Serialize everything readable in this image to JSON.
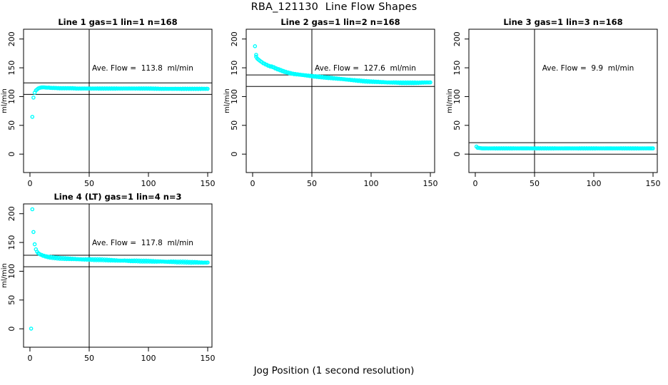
{
  "figure": {
    "title": "RBA_121130  Line Flow Shapes",
    "xlabel": "Jog Position (1 second resolution)",
    "background_color": "#FFFFFF",
    "axis_color": "#000000",
    "point_color": "#00FFFF"
  },
  "chart_data": [
    {
      "type": "scatter",
      "title": "Line 1 gas=1 lin=1 n=168",
      "ave_flow": 113.8,
      "ave_flow_label": "Ave. Flow =  113.8  ml/min",
      "ylabel": "ml/min",
      "x_ticks": [
        0,
        50,
        100,
        150
      ],
      "y_ticks": [
        0,
        50,
        100,
        150,
        200
      ],
      "xlim": [
        -5.4,
        153.6
      ],
      "ylim": [
        -32,
        217
      ],
      "vline_x": 50,
      "hlines": [
        123.8,
        103.8
      ],
      "jitter": 0.35,
      "points": [
        [
          2,
          65
        ],
        [
          3,
          98
        ],
        [
          4,
          107
        ],
        [
          5,
          110.5
        ],
        [
          6,
          112.5
        ],
        [
          7,
          114
        ],
        [
          8,
          115
        ],
        [
          9,
          115.5
        ],
        [
          10,
          116
        ],
        [
          12,
          116
        ],
        [
          14,
          115.5
        ],
        [
          16,
          115.5
        ],
        [
          18,
          115
        ],
        [
          20,
          115
        ],
        [
          25,
          114.5
        ],
        [
          30,
          114.5
        ],
        [
          35,
          114.5
        ],
        [
          40,
          114
        ],
        [
          50,
          114
        ],
        [
          60,
          114
        ],
        [
          70,
          114
        ],
        [
          80,
          114
        ],
        [
          90,
          114
        ],
        [
          100,
          114
        ],
        [
          110,
          113.5
        ],
        [
          120,
          113.5
        ],
        [
          130,
          113.5
        ],
        [
          140,
          113.5
        ],
        [
          150,
          113.5
        ]
      ]
    },
    {
      "type": "scatter",
      "title": "Line 2 gas=1 lin=2 n=168",
      "ave_flow": 127.6,
      "ave_flow_label": "Ave. Flow =  127.6  ml/min",
      "ylabel": "ml/min",
      "x_ticks": [
        0,
        50,
        100,
        150
      ],
      "y_ticks": [
        0,
        50,
        100,
        150,
        200
      ],
      "xlim": [
        -5.4,
        153.6
      ],
      "ylim": [
        -32,
        217
      ],
      "vline_x": 50,
      "hlines": [
        137.6,
        117.6
      ],
      "jitter": 0.7,
      "points": [
        [
          2,
          188
        ],
        [
          3,
          172
        ],
        [
          3,
          169
        ],
        [
          4,
          166
        ],
        [
          5,
          164
        ],
        [
          6,
          162.5
        ],
        [
          7,
          161
        ],
        [
          8,
          159.5
        ],
        [
          9,
          158
        ],
        [
          10,
          157
        ],
        [
          11,
          156
        ],
        [
          12,
          155
        ],
        [
          13,
          154
        ],
        [
          14,
          153
        ],
        [
          15,
          152.5
        ],
        [
          16,
          152
        ],
        [
          17,
          151.5
        ],
        [
          18,
          150.5
        ],
        [
          19,
          149.5
        ],
        [
          20,
          148.5
        ],
        [
          22,
          147
        ],
        [
          24,
          145.5
        ],
        [
          26,
          144
        ],
        [
          28,
          142.5
        ],
        [
          30,
          141.5
        ],
        [
          32,
          140.5
        ],
        [
          34,
          139.5
        ],
        [
          36,
          139
        ],
        [
          38,
          138.5
        ],
        [
          40,
          138
        ],
        [
          42,
          137.5
        ],
        [
          44,
          137
        ],
        [
          46,
          136.5
        ],
        [
          48,
          136
        ],
        [
          50,
          135.5
        ],
        [
          55,
          134.5
        ],
        [
          60,
          133.5
        ],
        [
          65,
          132.5
        ],
        [
          70,
          131.5
        ],
        [
          75,
          130.5
        ],
        [
          80,
          129.5
        ],
        [
          85,
          128.5
        ],
        [
          90,
          127.5
        ],
        [
          95,
          126.5
        ],
        [
          100,
          126
        ],
        [
          105,
          125.5
        ],
        [
          110,
          125
        ],
        [
          115,
          124.5
        ],
        [
          120,
          124.5
        ],
        [
          125,
          124
        ],
        [
          130,
          124
        ],
        [
          135,
          124
        ],
        [
          140,
          124
        ],
        [
          145,
          124.5
        ],
        [
          150,
          124.5
        ]
      ]
    },
    {
      "type": "scatter",
      "title": "Line 3 gas=1 lin=3 n=168",
      "ave_flow": 9.9,
      "ave_flow_label": "Ave. Flow =  9.9  ml/min",
      "ylabel": "ml/min",
      "x_ticks": [
        0,
        50,
        100,
        150
      ],
      "y_ticks": [
        0,
        50,
        100,
        150,
        200
      ],
      "xlim": [
        -5.4,
        153.6
      ],
      "ylim": [
        -32,
        217
      ],
      "vline_x": 50,
      "hlines": [
        19.9,
        -0.1
      ],
      "jitter": 0.25,
      "points": [
        [
          1,
          13
        ],
        [
          2,
          11
        ],
        [
          4,
          10.5
        ],
        [
          6,
          10
        ],
        [
          10,
          10
        ],
        [
          20,
          10
        ],
        [
          30,
          10
        ],
        [
          40,
          10
        ],
        [
          50,
          10
        ],
        [
          60,
          10
        ],
        [
          70,
          10
        ],
        [
          80,
          10
        ],
        [
          90,
          10
        ],
        [
          100,
          10
        ],
        [
          110,
          10
        ],
        [
          120,
          10
        ],
        [
          130,
          10
        ],
        [
          140,
          10
        ],
        [
          150,
          10
        ]
      ]
    },
    {
      "type": "scatter",
      "title": "Line 4 (LT) gas=1 lin=4 n=3",
      "ave_flow": 117.8,
      "ave_flow_label": "Ave. Flow =  117.8  ml/min",
      "ylabel": "ml/min",
      "x_ticks": [
        0,
        50,
        100,
        150
      ],
      "y_ticks": [
        0,
        50,
        100,
        150,
        200
      ],
      "xlim": [
        -5.4,
        153.6
      ],
      "ylim": [
        -32,
        217
      ],
      "vline_x": 50,
      "hlines": [
        127.8,
        107.8
      ],
      "jitter": 0.9,
      "points": [
        [
          1,
          0
        ],
        [
          2,
          208
        ],
        [
          3,
          168
        ],
        [
          4,
          147
        ],
        [
          5,
          138
        ],
        [
          6,
          134
        ],
        [
          7,
          131.5
        ],
        [
          8,
          130
        ],
        [
          9,
          129
        ],
        [
          10,
          128
        ],
        [
          12,
          126.5
        ],
        [
          14,
          125.5
        ],
        [
          16,
          124.5
        ],
        [
          18,
          124
        ],
        [
          20,
          123.5
        ],
        [
          25,
          122.5
        ],
        [
          30,
          122
        ],
        [
          35,
          121.5
        ],
        [
          40,
          121
        ],
        [
          45,
          120.5
        ],
        [
          50,
          120.5
        ],
        [
          55,
          120
        ],
        [
          60,
          120
        ],
        [
          65,
          119.5
        ],
        [
          70,
          119
        ],
        [
          75,
          118.5
        ],
        [
          80,
          118.5
        ],
        [
          85,
          118
        ],
        [
          90,
          118
        ],
        [
          95,
          117.5
        ],
        [
          100,
          117.5
        ],
        [
          105,
          117
        ],
        [
          110,
          117
        ],
        [
          115,
          116.5
        ],
        [
          120,
          116.5
        ],
        [
          125,
          116
        ],
        [
          130,
          116
        ],
        [
          135,
          115.5
        ],
        [
          140,
          115.5
        ],
        [
          145,
          115
        ],
        [
          150,
          115
        ]
      ]
    }
  ]
}
